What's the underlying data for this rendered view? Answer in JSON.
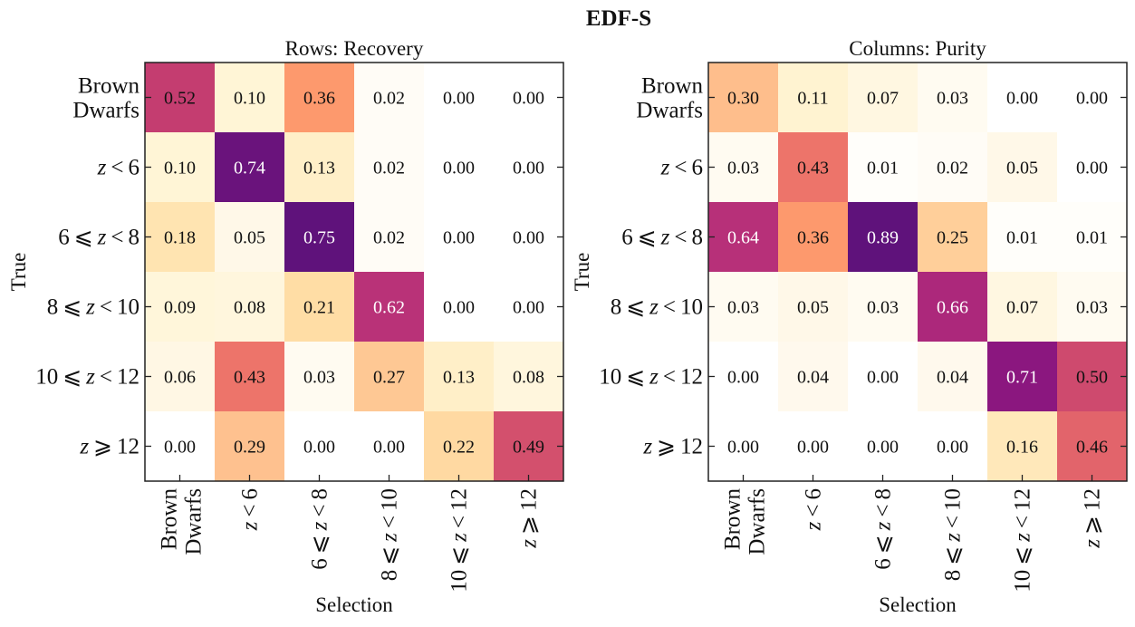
{
  "chart_data": {
    "title": "EDF-S",
    "panels": [
      {
        "type": "heatmap",
        "title": "Rows: Recovery",
        "xlabel": "Selection",
        "ylabel": "True",
        "categories": [
          "Brown Dwarfs",
          "z < 6",
          "6 ⩽ z < 8",
          "8 ⩽ z < 10",
          "10 ⩽ z < 12",
          "z ⩾ 12"
        ],
        "vmin": 0,
        "vmax": 1,
        "colormap": "magma_r",
        "values": [
          [
            0.52,
            0.1,
            0.36,
            0.02,
            0.0,
            0.0
          ],
          [
            0.1,
            0.74,
            0.13,
            0.02,
            0.0,
            0.0
          ],
          [
            0.18,
            0.05,
            0.75,
            0.02,
            0.0,
            0.0
          ],
          [
            0.09,
            0.08,
            0.21,
            0.62,
            0.0,
            0.0
          ],
          [
            0.06,
            0.43,
            0.03,
            0.27,
            0.13,
            0.08
          ],
          [
            0.0,
            0.29,
            0.0,
            0.0,
            0.22,
            0.49
          ]
        ]
      },
      {
        "type": "heatmap",
        "title": "Columns: Purity",
        "xlabel": "Selection",
        "ylabel": "True",
        "categories": [
          "Brown Dwarfs",
          "z < 6",
          "6 ⩽ z < 8",
          "8 ⩽ z < 10",
          "10 ⩽ z < 12",
          "z ⩾ 12"
        ],
        "vmin": 0,
        "vmax": 1,
        "colormap": "magma_r",
        "values": [
          [
            0.3,
            0.11,
            0.07,
            0.03,
            0.0,
            0.0
          ],
          [
            0.03,
            0.43,
            0.01,
            0.02,
            0.05,
            0.0
          ],
          [
            0.64,
            0.36,
            0.89,
            0.25,
            0.01,
            0.01
          ],
          [
            0.03,
            0.05,
            0.03,
            0.66,
            0.07,
            0.03
          ],
          [
            0.0,
            0.04,
            0.0,
            0.04,
            0.71,
            0.5
          ],
          [
            0.0,
            0.0,
            0.0,
            0.0,
            0.16,
            0.46
          ]
        ]
      }
    ]
  }
}
